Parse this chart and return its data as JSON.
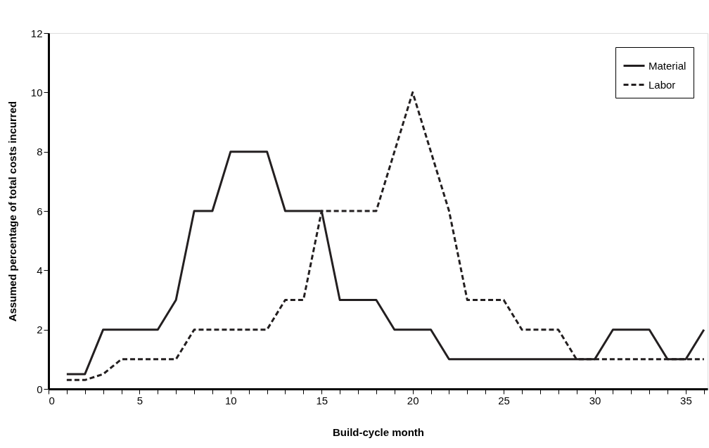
{
  "chart_data": {
    "type": "line",
    "xlabel": "Build-cycle month",
    "ylabel": "Assumed percentage of total costs incurred",
    "x": [
      1,
      2,
      3,
      4,
      5,
      6,
      7,
      8,
      9,
      10,
      11,
      12,
      13,
      14,
      15,
      16,
      17,
      18,
      19,
      20,
      21,
      22,
      23,
      24,
      25,
      26,
      27,
      28,
      29,
      30,
      31,
      32,
      33,
      34,
      35,
      36
    ],
    "series": [
      {
        "name": "Material",
        "color": "#231f20",
        "line_style": "solid",
        "values": [
          0.5,
          0.5,
          2,
          2,
          2,
          2,
          3,
          6,
          6,
          8,
          8,
          8,
          6,
          6,
          6,
          3,
          3,
          3,
          2,
          2,
          2,
          1,
          1,
          1,
          1,
          1,
          1,
          1,
          1,
          1,
          2,
          2,
          2,
          1,
          1,
          2
        ]
      },
      {
        "name": "Labor",
        "color": "#231f20",
        "line_style": "dashed",
        "values": [
          0.3,
          0.3,
          0.5,
          1,
          1,
          1,
          1,
          2,
          2,
          2,
          2,
          2,
          3,
          3,
          6,
          6,
          6,
          6,
          8,
          10,
          8,
          6,
          3,
          3,
          3,
          2,
          2,
          2,
          1,
          1,
          1,
          1,
          1,
          1,
          1,
          1
        ]
      }
    ],
    "xlim": [
      0,
      36.2
    ],
    "ylim": [
      0,
      12
    ],
    "xticks": [
      0,
      {
        "value": 1,
        "label": null
      },
      {
        "value": 2,
        "label": null
      },
      {
        "value": 3,
        "label": null
      },
      {
        "value": 4,
        "label": null
      },
      5,
      {
        "value": 6,
        "label": null
      },
      {
        "value": 7,
        "label": null
      },
      {
        "value": 8,
        "label": null
      },
      {
        "value": 9,
        "label": null
      },
      10,
      {
        "value": 11,
        "label": null
      },
      {
        "value": 12,
        "label": null
      },
      {
        "value": 13,
        "label": null
      },
      {
        "value": 14,
        "label": null
      },
      15,
      {
        "value": 16,
        "label": null
      },
      {
        "value": 17,
        "label": null
      },
      {
        "value": 18,
        "label": null
      },
      {
        "value": 19,
        "label": null
      },
      20,
      {
        "value": 21,
        "label": null
      },
      {
        "value": 22,
        "label": null
      },
      {
        "value": 23,
        "label": null
      },
      {
        "value": 24,
        "label": null
      },
      25,
      {
        "value": 26,
        "label": null
      },
      {
        "value": 27,
        "label": null
      },
      {
        "value": 28,
        "label": null
      },
      {
        "value": 29,
        "label": null
      },
      30,
      {
        "value": 31,
        "label": null
      },
      {
        "value": 32,
        "label": null
      },
      {
        "value": 33,
        "label": null
      },
      {
        "value": 34,
        "label": null
      },
      35,
      {
        "value": 36,
        "label": null
      }
    ],
    "yticks": [
      0,
      2,
      4,
      6,
      8,
      10,
      12
    ],
    "grid": false,
    "legend": "top right",
    "marker": "none"
  }
}
